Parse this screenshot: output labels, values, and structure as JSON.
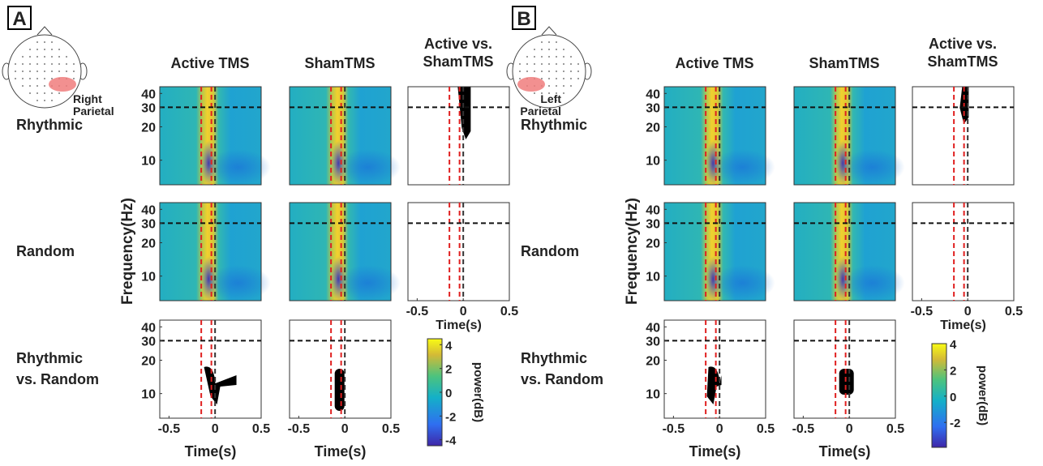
{
  "panels": [
    {
      "label": "A",
      "region": [
        "Right",
        "Parietal"
      ],
      "columns": [
        "Active TMS",
        "ShamTMS",
        [
          "Active vs.",
          "ShamTMS"
        ]
      ],
      "rows": [
        "Rhythmic",
        "Random",
        [
          "Rhythmic",
          "vs. Random"
        ]
      ],
      "y_label": "Frequency(Hz)",
      "x_label": "Time(s)",
      "ylim": [
        6,
        46
      ],
      "log_y": true,
      "yticks": [
        10,
        20,
        30,
        40
      ],
      "xlim": [
        -0.6,
        0.5
      ],
      "xticks": [
        -0.5,
        0,
        0.5
      ],
      "red_lines": [
        -0.15,
        -0.04
      ],
      "black_line": 0,
      "freq_line": 30,
      "colorbar": {
        "label": "power(dB)",
        "lim": [
          -4.5,
          4.5
        ],
        "ticks": [
          4,
          2,
          0,
          -2,
          -4
        ]
      }
    },
    {
      "label": "B",
      "region": [
        "Left",
        "Parietal"
      ],
      "columns": [
        "Active TMS",
        "ShamTMS",
        [
          "Active vs.",
          "ShamTMS"
        ]
      ],
      "rows": [
        "Rhythmic",
        "Random",
        [
          "Rhythmic",
          "vs. Random"
        ]
      ],
      "y_label": "Frequency(Hz)",
      "x_label": "Time(s)",
      "ylim": [
        6,
        46
      ],
      "log_y": true,
      "yticks": [
        10,
        20,
        30,
        40
      ],
      "xlim": [
        -0.6,
        0.5
      ],
      "xticks": [
        -0.5,
        0,
        0.5
      ],
      "red_lines": [
        -0.15,
        -0.04
      ],
      "black_line": 0,
      "freq_line": 30,
      "colorbar": {
        "label": "power(dB)",
        "lim": [
          -3.9,
          4
        ],
        "ticks": [
          4,
          2,
          0,
          -2
        ]
      }
    }
  ]
}
